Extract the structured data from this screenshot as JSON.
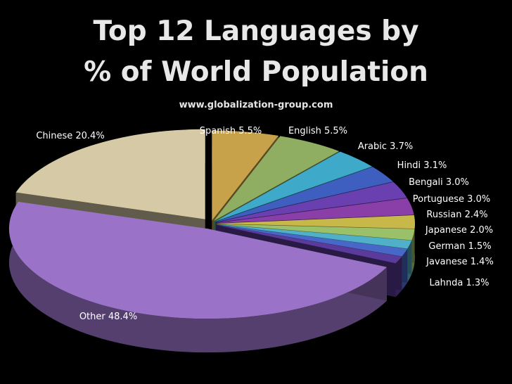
{
  "header": {
    "title_line1": "Top 12 Languages by",
    "title_line2": "% of World Population",
    "source": "www.globalization-group.com"
  },
  "chart_data": {
    "type": "pie",
    "title": "Top 12 Languages by % of World Population",
    "categories": [
      "Spanish",
      "English",
      "Arabic",
      "Hindi",
      "Bengali",
      "Portuguese",
      "Russian",
      "Japanese",
      "German",
      "Javanese",
      "Lahnda",
      "Other",
      "Chinese"
    ],
    "values": [
      5.5,
      5.5,
      3.7,
      3.1,
      3.0,
      3.0,
      2.4,
      2.0,
      1.5,
      1.4,
      1.3,
      48.4,
      20.4
    ],
    "labels": [
      "Spanish 5.5%",
      "English 5.5%",
      "Arabic 3.7%",
      "Hindi 3.1%",
      "Bengali 3.0%",
      "Portuguese 3.0%",
      "Russian 2.4%",
      "Japanese 2.0%",
      "German 1.5%",
      "Javanese 1.4%",
      "Lahnda 1.3%",
      "Other 48.4%",
      "Chinese 20.4%"
    ],
    "colors": [
      "#c8a24a",
      "#8fae62",
      "#3fa9c9",
      "#3f5fc0",
      "#6a3fb0",
      "#8a3fa8",
      "#c8b84a",
      "#9bc06a",
      "#4fb0c8",
      "#4868c8",
      "#5a3a9a",
      "#9a72c8",
      "#d6caa6"
    ],
    "exploded": true,
    "style": "3d"
  }
}
